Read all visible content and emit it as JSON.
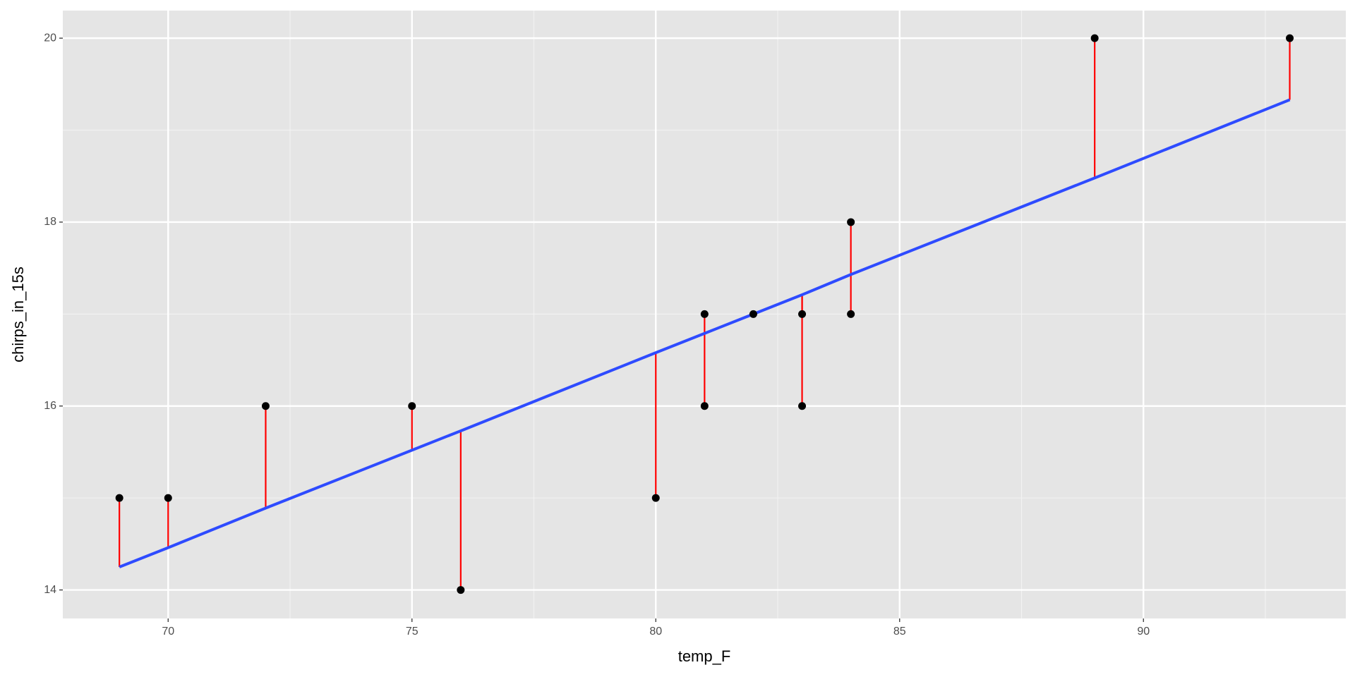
{
  "chart_data": {
    "type": "scatter",
    "x_label": "temp_F",
    "y_label": "chirps_in_15s",
    "x": [
      69,
      70,
      72,
      75,
      76,
      80,
      81,
      81,
      82,
      83,
      83,
      84,
      84,
      89,
      93
    ],
    "y": [
      15,
      15,
      16,
      16,
      14,
      15,
      17,
      16,
      17,
      17,
      16,
      18,
      17,
      20,
      20
    ],
    "fitted": [
      14.25,
      14.46,
      14.89,
      15.52,
      15.73,
      16.58,
      16.79,
      16.79,
      17.0,
      17.21,
      17.21,
      17.43,
      17.43,
      18.48,
      19.33
    ],
    "point_color": "#000000",
    "line_color": "#2e4bff",
    "residual_color": "#ff0000",
    "xlim": [
      67.84,
      94.15
    ],
    "ylim": [
      13.69,
      20.3
    ],
    "xticks": [
      70,
      75,
      80,
      85,
      90
    ],
    "yticks": [
      14,
      16,
      18,
      20
    ],
    "grid": true
  }
}
